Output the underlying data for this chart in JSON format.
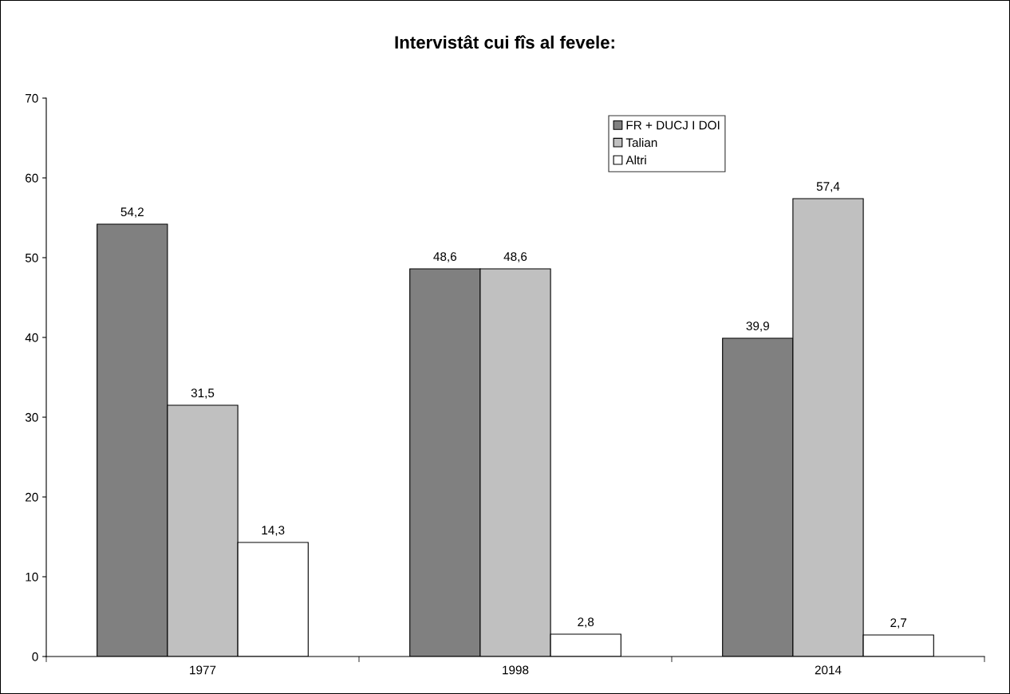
{
  "chart_data": {
    "type": "bar",
    "title": "Intervistât cui fîs al fevele:",
    "categories": [
      "1977",
      "1998",
      "2014"
    ],
    "series": [
      {
        "name": "FR + DUCJ I DOI",
        "color": "#808080",
        "values": [
          54.2,
          48.6,
          39.9
        ],
        "value_labels": [
          "54,2",
          "48,6",
          "39,9"
        ]
      },
      {
        "name": "Talian",
        "color": "#c0c0c0",
        "values": [
          31.5,
          48.6,
          57.4
        ],
        "value_labels": [
          "31,5",
          "48,6",
          "57,4"
        ]
      },
      {
        "name": "Altri",
        "color": "#ffffff",
        "values": [
          14.3,
          2.8,
          2.7
        ],
        "value_labels": [
          "14,3",
          "2,8",
          "2,7"
        ]
      }
    ],
    "ylim": [
      0,
      70
    ],
    "yticks": [
      0,
      10,
      20,
      30,
      40,
      50,
      60,
      70
    ],
    "grid": false,
    "legend": "top right"
  }
}
